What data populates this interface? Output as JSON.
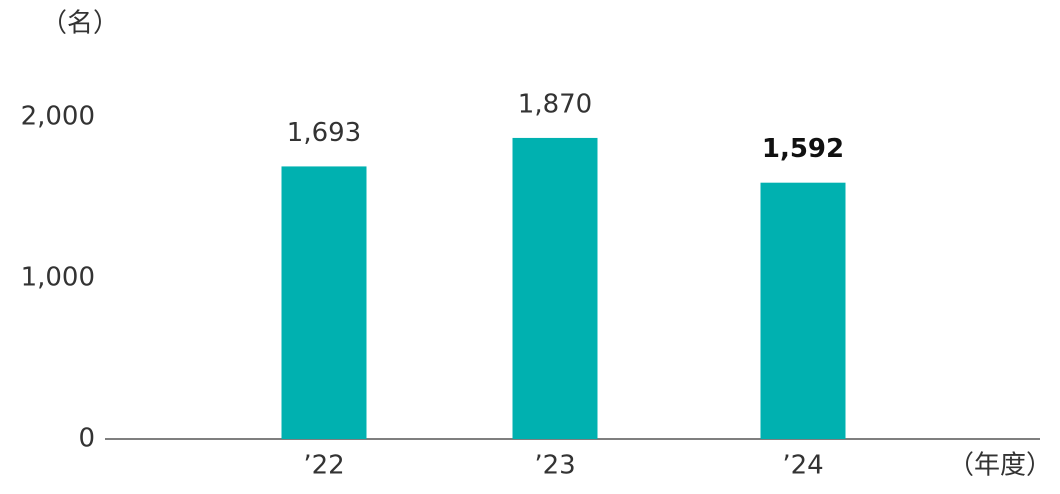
{
  "chart_data": {
    "type": "bar",
    "y_unit_label": "（名）",
    "x_unit_label": "（年度）",
    "categories": [
      "’22",
      "’23",
      "’24"
    ],
    "values": [
      1693,
      1870,
      1592
    ],
    "value_labels": [
      "1,693",
      "1,870",
      "1,592"
    ],
    "color": "#00b1b0",
    "ylim": [
      0,
      2000
    ],
    "yticks": [
      0,
      {
        "value": 1000,
        "label": "1,000"
      },
      {
        "value": 2000,
        "label": "2,000"
      }
    ],
    "grid": false
  }
}
